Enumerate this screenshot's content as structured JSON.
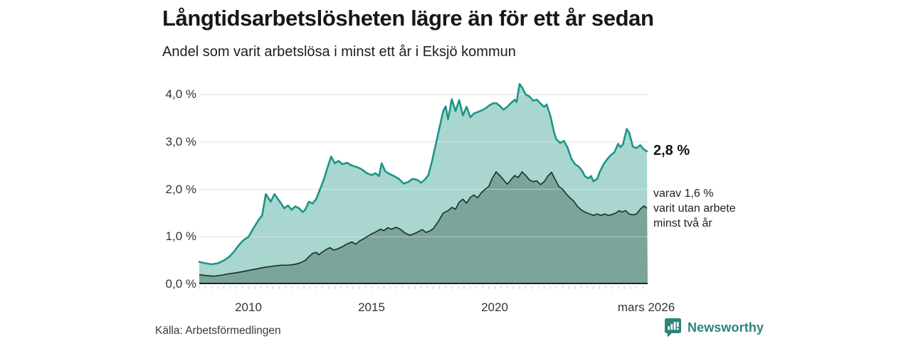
{
  "chart_data": {
    "type": "area",
    "title": "Långtidsarbetslösheten lägre än för ett år sedan",
    "subtitle": "Andel som varit arbetslösa i minst ett år i Eksjö kommun",
    "unit": "%",
    "x_domain": [
      2008.0,
      2026.2
    ],
    "y_max": 4.0,
    "grid": true,
    "legend_position": "none",
    "y_tick_labels": [
      "4,0 %",
      "3,0 %",
      "2,0 %",
      "1,0 %",
      "0,0 %"
    ],
    "y_tick_values": [
      4.0,
      3.0,
      2.0,
      1.0,
      0.0
    ],
    "x_tick_labels": [
      "2010",
      "2015",
      "2020",
      "mars 2026"
    ],
    "x_tick_values": [
      2010,
      2015,
      2020,
      2026.17
    ],
    "minor_tick_step_years": 0.25,
    "colors": {
      "line_total": "#1a9688",
      "fill_total": "#a9d6ce",
      "line_two_years": "#1f3431",
      "fill_two_years": "#7ba49b",
      "gridline": "#d9d9d9",
      "axis": "#222222",
      "minor_tick": "#c2c2c2",
      "brand_teal": "#2e837b"
    },
    "series": [
      {
        "name": "Andel som varit arbetslösa i minst ett år",
        "latest_label": "2,8 %",
        "latest_value": 2.8,
        "points": [
          [
            2008.0,
            0.47
          ],
          [
            2008.25,
            0.44
          ],
          [
            2008.5,
            0.42
          ],
          [
            2008.75,
            0.44
          ],
          [
            2009.0,
            0.5
          ],
          [
            2009.2,
            0.57
          ],
          [
            2009.4,
            0.68
          ],
          [
            2009.6,
            0.82
          ],
          [
            2009.8,
            0.93
          ],
          [
            2010.0,
            1.0
          ],
          [
            2010.2,
            1.18
          ],
          [
            2010.4,
            1.35
          ],
          [
            2010.55,
            1.45
          ],
          [
            2010.7,
            1.9
          ],
          [
            2010.9,
            1.74
          ],
          [
            2011.05,
            1.9
          ],
          [
            2011.3,
            1.72
          ],
          [
            2011.45,
            1.6
          ],
          [
            2011.6,
            1.66
          ],
          [
            2011.75,
            1.57
          ],
          [
            2011.9,
            1.64
          ],
          [
            2012.05,
            1.6
          ],
          [
            2012.2,
            1.52
          ],
          [
            2012.3,
            1.57
          ],
          [
            2012.45,
            1.74
          ],
          [
            2012.6,
            1.7
          ],
          [
            2012.75,
            1.8
          ],
          [
            2012.9,
            2.0
          ],
          [
            2013.05,
            2.2
          ],
          [
            2013.2,
            2.45
          ],
          [
            2013.35,
            2.69
          ],
          [
            2013.5,
            2.55
          ],
          [
            2013.65,
            2.6
          ],
          [
            2013.8,
            2.53
          ],
          [
            2014.0,
            2.56
          ],
          [
            2014.2,
            2.5
          ],
          [
            2014.4,
            2.47
          ],
          [
            2014.6,
            2.42
          ],
          [
            2014.8,
            2.34
          ],
          [
            2015.0,
            2.3
          ],
          [
            2015.15,
            2.34
          ],
          [
            2015.3,
            2.28
          ],
          [
            2015.4,
            2.55
          ],
          [
            2015.55,
            2.38
          ],
          [
            2015.7,
            2.33
          ],
          [
            2015.9,
            2.28
          ],
          [
            2016.1,
            2.22
          ],
          [
            2016.3,
            2.12
          ],
          [
            2016.5,
            2.16
          ],
          [
            2016.65,
            2.22
          ],
          [
            2016.85,
            2.2
          ],
          [
            2017.0,
            2.14
          ],
          [
            2017.15,
            2.2
          ],
          [
            2017.3,
            2.3
          ],
          [
            2017.45,
            2.6
          ],
          [
            2017.6,
            2.95
          ],
          [
            2017.75,
            3.3
          ],
          [
            2017.9,
            3.65
          ],
          [
            2018.0,
            3.75
          ],
          [
            2018.1,
            3.48
          ],
          [
            2018.25,
            3.9
          ],
          [
            2018.4,
            3.65
          ],
          [
            2018.55,
            3.88
          ],
          [
            2018.7,
            3.56
          ],
          [
            2018.85,
            3.74
          ],
          [
            2019.0,
            3.52
          ],
          [
            2019.15,
            3.6
          ],
          [
            2019.3,
            3.63
          ],
          [
            2019.45,
            3.66
          ],
          [
            2019.6,
            3.7
          ],
          [
            2019.75,
            3.76
          ],
          [
            2019.9,
            3.81
          ],
          [
            2020.05,
            3.82
          ],
          [
            2020.2,
            3.76
          ],
          [
            2020.35,
            3.68
          ],
          [
            2020.5,
            3.74
          ],
          [
            2020.65,
            3.82
          ],
          [
            2020.8,
            3.89
          ],
          [
            2020.88,
            3.84
          ],
          [
            2021.0,
            4.22
          ],
          [
            2021.1,
            4.15
          ],
          [
            2021.25,
            4.0
          ],
          [
            2021.4,
            3.96
          ],
          [
            2021.55,
            3.87
          ],
          [
            2021.7,
            3.89
          ],
          [
            2021.85,
            3.81
          ],
          [
            2022.0,
            3.74
          ],
          [
            2022.1,
            3.79
          ],
          [
            2022.25,
            3.55
          ],
          [
            2022.4,
            3.2
          ],
          [
            2022.5,
            3.05
          ],
          [
            2022.65,
            2.98
          ],
          [
            2022.8,
            3.02
          ],
          [
            2022.95,
            2.88
          ],
          [
            2023.1,
            2.65
          ],
          [
            2023.25,
            2.53
          ],
          [
            2023.4,
            2.48
          ],
          [
            2023.55,
            2.38
          ],
          [
            2023.65,
            2.28
          ],
          [
            2023.8,
            2.23
          ],
          [
            2023.9,
            2.28
          ],
          [
            2024.0,
            2.17
          ],
          [
            2024.15,
            2.22
          ],
          [
            2024.25,
            2.36
          ],
          [
            2024.4,
            2.52
          ],
          [
            2024.55,
            2.63
          ],
          [
            2024.7,
            2.72
          ],
          [
            2024.85,
            2.78
          ],
          [
            2025.0,
            2.96
          ],
          [
            2025.1,
            2.89
          ],
          [
            2025.2,
            2.95
          ],
          [
            2025.35,
            3.27
          ],
          [
            2025.45,
            3.2
          ],
          [
            2025.6,
            2.9
          ],
          [
            2025.75,
            2.87
          ],
          [
            2025.9,
            2.93
          ],
          [
            2026.05,
            2.84
          ],
          [
            2026.17,
            2.8
          ]
        ]
      },
      {
        "name": "varav varit utan arbete minst två år",
        "latest_label": "1,6 %",
        "latest_value": 1.6,
        "points": [
          [
            2008.0,
            0.2
          ],
          [
            2008.3,
            0.18
          ],
          [
            2008.6,
            0.17
          ],
          [
            2008.9,
            0.19
          ],
          [
            2009.2,
            0.22
          ],
          [
            2009.5,
            0.24
          ],
          [
            2009.8,
            0.27
          ],
          [
            2010.1,
            0.3
          ],
          [
            2010.4,
            0.33
          ],
          [
            2010.7,
            0.36
          ],
          [
            2011.0,
            0.38
          ],
          [
            2011.3,
            0.4
          ],
          [
            2011.6,
            0.4
          ],
          [
            2011.9,
            0.42
          ],
          [
            2012.1,
            0.45
          ],
          [
            2012.3,
            0.5
          ],
          [
            2012.45,
            0.58
          ],
          [
            2012.6,
            0.65
          ],
          [
            2012.75,
            0.67
          ],
          [
            2012.85,
            0.62
          ],
          [
            2013.0,
            0.68
          ],
          [
            2013.15,
            0.73
          ],
          [
            2013.3,
            0.77
          ],
          [
            2013.45,
            0.72
          ],
          [
            2013.6,
            0.74
          ],
          [
            2013.8,
            0.79
          ],
          [
            2014.0,
            0.85
          ],
          [
            2014.2,
            0.89
          ],
          [
            2014.35,
            0.84
          ],
          [
            2014.5,
            0.91
          ],
          [
            2014.65,
            0.95
          ],
          [
            2014.8,
            1.0
          ],
          [
            2015.0,
            1.06
          ],
          [
            2015.2,
            1.11
          ],
          [
            2015.35,
            1.16
          ],
          [
            2015.5,
            1.13
          ],
          [
            2015.65,
            1.19
          ],
          [
            2015.8,
            1.16
          ],
          [
            2016.0,
            1.2
          ],
          [
            2016.15,
            1.16
          ],
          [
            2016.35,
            1.08
          ],
          [
            2016.55,
            1.03
          ],
          [
            2016.75,
            1.07
          ],
          [
            2016.9,
            1.11
          ],
          [
            2017.05,
            1.15
          ],
          [
            2017.2,
            1.09
          ],
          [
            2017.35,
            1.12
          ],
          [
            2017.5,
            1.17
          ],
          [
            2017.7,
            1.32
          ],
          [
            2017.9,
            1.5
          ],
          [
            2018.1,
            1.55
          ],
          [
            2018.25,
            1.62
          ],
          [
            2018.4,
            1.58
          ],
          [
            2018.55,
            1.73
          ],
          [
            2018.7,
            1.79
          ],
          [
            2018.85,
            1.71
          ],
          [
            2019.0,
            1.83
          ],
          [
            2019.15,
            1.88
          ],
          [
            2019.3,
            1.82
          ],
          [
            2019.45,
            1.93
          ],
          [
            2019.6,
            2.0
          ],
          [
            2019.75,
            2.06
          ],
          [
            2019.9,
            2.24
          ],
          [
            2020.05,
            2.37
          ],
          [
            2020.2,
            2.29
          ],
          [
            2020.35,
            2.2
          ],
          [
            2020.5,
            2.11
          ],
          [
            2020.65,
            2.2
          ],
          [
            2020.8,
            2.29
          ],
          [
            2020.95,
            2.25
          ],
          [
            2021.1,
            2.37
          ],
          [
            2021.25,
            2.29
          ],
          [
            2021.4,
            2.2
          ],
          [
            2021.55,
            2.16
          ],
          [
            2021.7,
            2.18
          ],
          [
            2021.85,
            2.1
          ],
          [
            2022.0,
            2.16
          ],
          [
            2022.15,
            2.28
          ],
          [
            2022.3,
            2.36
          ],
          [
            2022.45,
            2.2
          ],
          [
            2022.6,
            2.06
          ],
          [
            2022.75,
            2.0
          ],
          [
            2022.9,
            1.9
          ],
          [
            2023.05,
            1.82
          ],
          [
            2023.2,
            1.75
          ],
          [
            2023.35,
            1.64
          ],
          [
            2023.5,
            1.57
          ],
          [
            2023.65,
            1.52
          ],
          [
            2023.8,
            1.49
          ],
          [
            2024.0,
            1.45
          ],
          [
            2024.15,
            1.48
          ],
          [
            2024.3,
            1.45
          ],
          [
            2024.45,
            1.48
          ],
          [
            2024.6,
            1.45
          ],
          [
            2024.75,
            1.47
          ],
          [
            2024.9,
            1.5
          ],
          [
            2025.05,
            1.55
          ],
          [
            2025.15,
            1.52
          ],
          [
            2025.3,
            1.55
          ],
          [
            2025.45,
            1.48
          ],
          [
            2025.6,
            1.46
          ],
          [
            2025.75,
            1.48
          ],
          [
            2025.9,
            1.58
          ],
          [
            2026.05,
            1.65
          ],
          [
            2026.17,
            1.6
          ]
        ]
      }
    ],
    "annotations": {
      "latest_total": "2,8 %",
      "sub_lines": [
        "varav 1,6 %",
        "varit utan arbete",
        "minst två år"
      ]
    }
  },
  "footer": {
    "source": "Källa: Arbetsförmedlingen",
    "brand": "Newsworthy"
  }
}
